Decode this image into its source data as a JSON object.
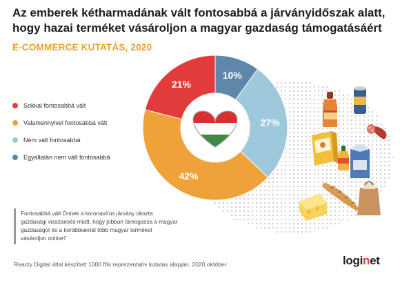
{
  "title_line1": "Az emberek kétharmadának vált fontosabbá a járványidőszak alatt,",
  "title_line2": "hogy hazai terméket vásároljon a magyar gazdaság támogatásáért",
  "subtitle": "E-COMMERCE KUTATÁS, 2020",
  "question": "Fontosabbá vált Önnek a koronavírus járvány okozta gazdasági visszaesés miatt, hogy jobban támogassa a magyar gazdaságot és a korábbiaknál több magyar terméket vásároljon online?",
  "footnote": "Reacty Digital által készített 1000 fős reprezentatív kutatás alapján, 2020 október",
  "logo": {
    "prefix": "logi",
    "accent": "n",
    "suffix": "et"
  },
  "colors": {
    "red": "#e23b3b",
    "orange": "#f0a23a",
    "lightblue": "#9ec9dc",
    "steelblue": "#5f87a9",
    "accent": "#e8a029"
  },
  "chart_data": {
    "type": "pie",
    "donut": true,
    "start": "12 o'clock, clockwise",
    "slices": [
      {
        "label": "Egyáltalán nem vált fontosabbá",
        "value": 10,
        "value_label": "10%",
        "color": "#5f87a9"
      },
      {
        "label": "Nem vált fontosabbá",
        "value": 27,
        "value_label": "27%",
        "color": "#9ec9dc"
      },
      {
        "label": "Valamennyivel fontosabbá vált",
        "value": 42,
        "value_label": "42%",
        "color": "#f0a23a"
      },
      {
        "label": "Sokkal fontosabbá vált",
        "value": 21,
        "value_label": "21%",
        "color": "#e23b3b"
      }
    ],
    "legend": [
      {
        "label": "Sokkal fontosabbá vált",
        "color": "#e23b3b"
      },
      {
        "label": "Valamennyivel fontosabbá vált",
        "color": "#f0a23a"
      },
      {
        "label": "Nem vált fontosabbá",
        "color": "#9ec9dc"
      },
      {
        "label": "Egyáltalán nem vált fontosabbá",
        "color": "#5f87a9"
      }
    ],
    "legend_position": "left",
    "center_icon": "hungarian-flag-heart-icon"
  },
  "icons": [
    "hungarian-flag-heart-icon",
    "sauce-bottle-icon",
    "can-icon",
    "salami-icon",
    "cereal-box-icon",
    "juice-bottle-icon",
    "milk-carton-icon",
    "baguette-icon",
    "cheese-icon",
    "grocery-bag-icon"
  ]
}
